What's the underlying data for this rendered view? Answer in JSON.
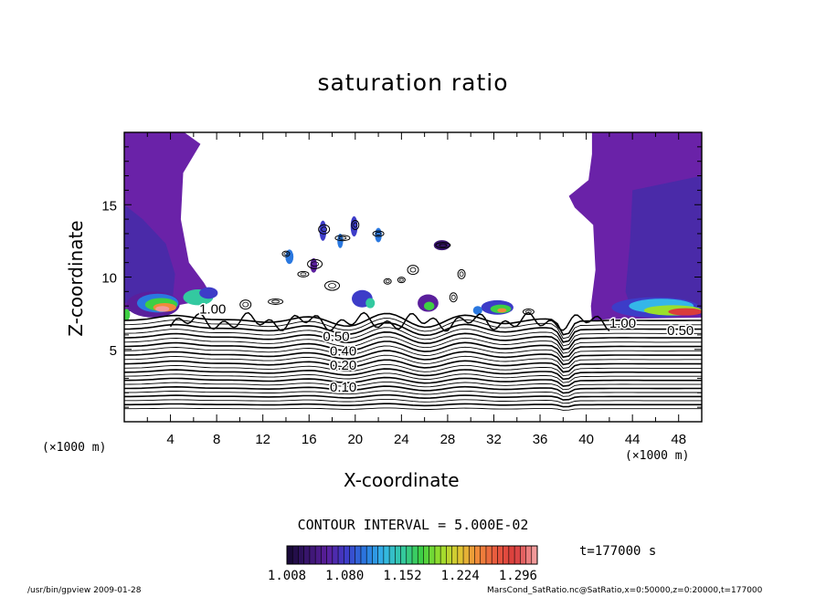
{
  "chart_data": {
    "type": "contour",
    "title": "saturation ratio",
    "xlabel": "X-coordinate",
    "ylabel": "Z-coordinate",
    "x_unit": "(×1000 m)",
    "xlim": [
      0,
      50
    ],
    "ylim": [
      0,
      20
    ],
    "x_ticks": [
      "4",
      "8",
      "12",
      "16",
      "20",
      "24",
      "28",
      "32",
      "36",
      "40",
      "44",
      "48"
    ],
    "y_ticks": [
      "5",
      "10",
      "15"
    ],
    "contour_interval": "CONTOUR INTERVAL = 5.000E-02",
    "contour_labels": [
      "0.10",
      "0.20",
      "0.40",
      "0.50",
      "1.00"
    ],
    "colorbar": {
      "min": 1.008,
      "max": 1.32,
      "tick_labels": [
        "1.008",
        "1.080",
        "1.152",
        "1.224",
        "1.296"
      ],
      "colors": [
        "#1a0a3a",
        "#3a1670",
        "#5a1f9c",
        "#3d3cc8",
        "#2a78e0",
        "#34b6e8",
        "#33c9a0",
        "#3ecf43",
        "#9adf2c",
        "#e0c833",
        "#f08a3a",
        "#e8573f",
        "#d93c3c",
        "#f29a9a"
      ]
    },
    "time": "t=177000 s"
  },
  "footer": {
    "left": "/usr/bin/gpview  2009-01-28",
    "right": "MarsCond_SatRatio.nc@SatRatio,x=0:50000,z=0:20000,t=177000"
  }
}
